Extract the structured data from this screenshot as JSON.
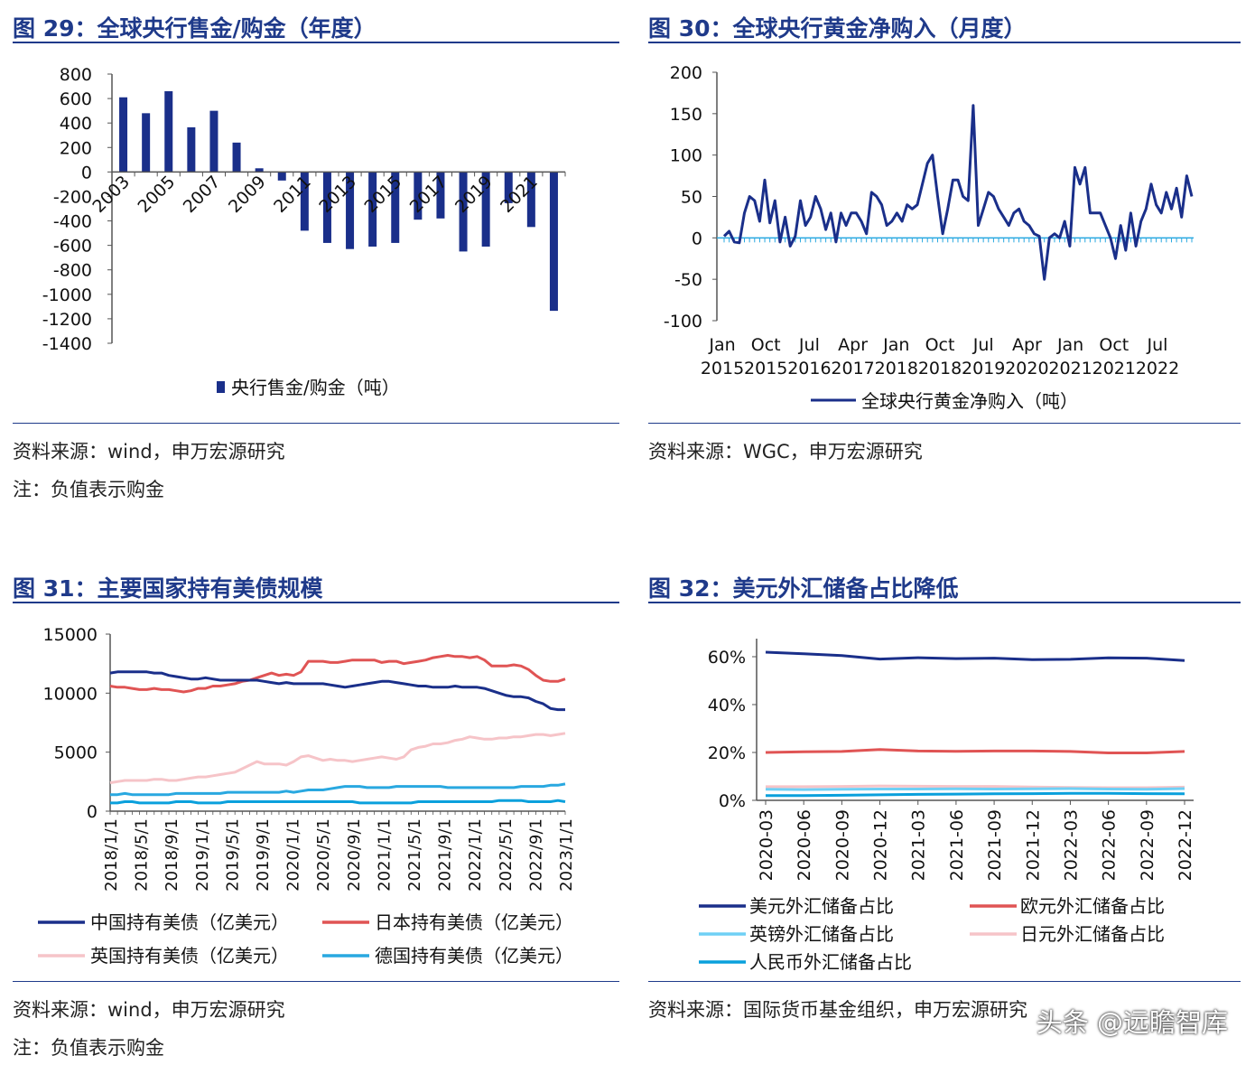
{
  "panels": [
    {
      "title": "图 29：全球央行售金/购金（年度）",
      "source": "资料来源：wind，申万宏源研究",
      "note": "注：负值表示购金"
    },
    {
      "title": "图 30：全球央行黄金净购入（月度）",
      "source": "资料来源：WGC，申万宏源研究",
      "note": ""
    },
    {
      "title": "图 31：主要国家持有美债规模",
      "source": "资料来源：wind，申万宏源研究",
      "note": "注：负值表示购金"
    },
    {
      "title": "图 32：美元外汇储备占比降低",
      "source": "资料来源：国际货币基金组织，申万宏源研究",
      "note": ""
    }
  ],
  "watermark": "头条 @远瞻智库",
  "chart_data": [
    {
      "type": "bar",
      "categories": [
        "2003",
        "2004",
        "2005",
        "2006",
        "2007",
        "2008",
        "2009",
        "2010",
        "2011",
        "2012",
        "2013",
        "2014",
        "2015",
        "2016",
        "2017",
        "2018",
        "2019",
        "2020",
        "2021",
        "2022"
      ],
      "tick_labels": [
        "2003",
        "2005",
        "2007",
        "2009",
        "2011",
        "2013",
        "2015",
        "2017",
        "2019",
        "2021"
      ],
      "series": [
        {
          "name": "央行售金/购金（吨）",
          "color": "#1a2f8a",
          "values": [
            610,
            480,
            660,
            365,
            500,
            240,
            30,
            -70,
            -480,
            -580,
            -630,
            -610,
            -580,
            -390,
            -380,
            -650,
            -610,
            -255,
            -450,
            -1135
          ]
        }
      ],
      "ylim": [
        -1400,
        800
      ],
      "yticks": [
        800,
        600,
        400,
        200,
        0,
        -200,
        -400,
        -600,
        -800,
        -1000,
        -1200,
        -1400
      ],
      "legend": "bottom"
    },
    {
      "type": "line",
      "x_range": [
        "2015-01",
        "2022-11"
      ],
      "tick_top": [
        "Jan",
        "Oct",
        "Jul",
        "Apr",
        "Jan",
        "Oct",
        "Jul",
        "Apr",
        "Jan",
        "Oct",
        "Jul"
      ],
      "tick_bottom": [
        "2015",
        "2015",
        "2016",
        "2017",
        "2018",
        "2018",
        "2019",
        "2020",
        "2021",
        "2021",
        "2022"
      ],
      "series": [
        {
          "name": "全球央行黄金净购入（吨）",
          "color": "#1a2f8a",
          "values": [
            2,
            8,
            -5,
            -6,
            30,
            50,
            45,
            20,
            70,
            18,
            45,
            -5,
            25,
            -10,
            2,
            45,
            15,
            25,
            50,
            35,
            10,
            30,
            -5,
            30,
            15,
            30,
            30,
            20,
            5,
            55,
            50,
            40,
            15,
            20,
            30,
            20,
            40,
            35,
            40,
            65,
            90,
            100,
            50,
            5,
            35,
            70,
            70,
            50,
            45,
            160,
            15,
            35,
            55,
            50,
            35,
            25,
            15,
            30,
            35,
            20,
            15,
            5,
            2,
            -50,
            0,
            5,
            0,
            20,
            -10,
            85,
            65,
            85,
            30,
            30,
            30,
            15,
            0,
            -25,
            15,
            -15,
            30,
            -10,
            20,
            35,
            65,
            40,
            30,
            55,
            35,
            60,
            25,
            75,
            50
          ]
        }
      ],
      "ylim": [
        -100,
        200
      ],
      "yticks": [
        200,
        150,
        100,
        50,
        0,
        -50,
        -100
      ],
      "legend": "bottom"
    },
    {
      "type": "line",
      "x_range": [
        "2018-01",
        "2023-01"
      ],
      "tick_labels": [
        "2018/1/1",
        "2018/5/1",
        "2018/9/1",
        "2019/1/1",
        "2019/5/1",
        "2019/9/1",
        "2020/1/1",
        "2020/5/1",
        "2020/9/1",
        "2021/1/1",
        "2021/5/1",
        "2021/9/1",
        "2022/1/1",
        "2022/5/1",
        "2022/9/1",
        "2023/1/1"
      ],
      "series": [
        {
          "name": "中国持有美债（亿美元）",
          "color": "#1a2f8a",
          "values": [
            11700,
            11800,
            11800,
            11800,
            11800,
            11800,
            11700,
            11700,
            11500,
            11400,
            11300,
            11200,
            11200,
            11300,
            11200,
            11100,
            11100,
            11100,
            11100,
            11100,
            11100,
            11000,
            10900,
            10800,
            10900,
            10800,
            10800,
            10800,
            10800,
            10800,
            10700,
            10600,
            10500,
            10600,
            10700,
            10800,
            10900,
            11000,
            11000,
            10900,
            10800,
            10700,
            10600,
            10600,
            10500,
            10500,
            10500,
            10600,
            10500,
            10500,
            10500,
            10400,
            10200,
            10000,
            9800,
            9700,
            9700,
            9600,
            9300,
            9100,
            8700,
            8600,
            8600
          ]
        },
        {
          "name": "日本持有美债（亿美元）",
          "color": "#e05454",
          "values": [
            10600,
            10500,
            10500,
            10400,
            10300,
            10300,
            10400,
            10300,
            10300,
            10200,
            10100,
            10200,
            10400,
            10400,
            10600,
            10600,
            10700,
            10800,
            11000,
            11100,
            11300,
            11500,
            11700,
            11500,
            11600,
            11500,
            11800,
            12700,
            12700,
            12700,
            12600,
            12600,
            12700,
            12800,
            12800,
            12800,
            12800,
            12600,
            12700,
            12700,
            12500,
            12600,
            12700,
            12800,
            13000,
            13100,
            13200,
            13100,
            13100,
            13000,
            13100,
            12800,
            12300,
            12300,
            12300,
            12400,
            12300,
            12000,
            11500,
            11100,
            11000,
            11000,
            11200
          ]
        },
        {
          "name": "英国持有美债（亿美元）",
          "color": "#f6c4c8",
          "values": [
            2400,
            2500,
            2600,
            2600,
            2600,
            2600,
            2700,
            2700,
            2600,
            2600,
            2700,
            2800,
            2900,
            2900,
            3000,
            3100,
            3200,
            3300,
            3600,
            3900,
            4200,
            4000,
            4000,
            4000,
            3900,
            4200,
            4600,
            4700,
            4500,
            4300,
            4400,
            4300,
            4300,
            4200,
            4300,
            4400,
            4500,
            4600,
            4500,
            4400,
            4600,
            5200,
            5400,
            5500,
            5700,
            5700,
            5800,
            6000,
            6100,
            6300,
            6200,
            6100,
            6100,
            6200,
            6200,
            6300,
            6300,
            6400,
            6500,
            6500,
            6400,
            6500,
            6600
          ]
        },
        {
          "name": "德国持有美债（亿美元）",
          "color": "#29a8e0",
          "values": [
            1400,
            1400,
            1500,
            1400,
            1400,
            1400,
            1400,
            1400,
            1400,
            1500,
            1500,
            1500,
            1500,
            1500,
            1500,
            1500,
            1600,
            1600,
            1600,
            1600,
            1600,
            1600,
            1600,
            1600,
            1700,
            1600,
            1700,
            1800,
            1800,
            1800,
            1900,
            2000,
            2100,
            2100,
            2100,
            2000,
            2000,
            2000,
            2000,
            2100,
            2100,
            2100,
            2100,
            2100,
            2100,
            2100,
            2000,
            2000,
            2000,
            2000,
            2000,
            2000,
            2000,
            2000,
            2000,
            2000,
            2100,
            2100,
            2100,
            2100,
            2200,
            2200,
            2300
          ]
        },
        {
          "name": "",
          "color": "#0aa0dc",
          "values": [
            700,
            700,
            800,
            800,
            700,
            700,
            700,
            700,
            700,
            800,
            800,
            800,
            700,
            700,
            700,
            700,
            800,
            800,
            800,
            800,
            800,
            800,
            800,
            800,
            800,
            800,
            800,
            800,
            800,
            800,
            800,
            800,
            800,
            800,
            700,
            700,
            700,
            700,
            700,
            700,
            700,
            700,
            800,
            800,
            800,
            800,
            800,
            800,
            800,
            800,
            800,
            800,
            800,
            900,
            900,
            900,
            900,
            800,
            800,
            800,
            800,
            900,
            800
          ]
        }
      ],
      "ylim": [
        0,
        15000
      ],
      "yticks": [
        15000,
        10000,
        5000,
        0
      ],
      "legend": "bottom"
    },
    {
      "type": "line",
      "categories": [
        "2020-03",
        "2020-06",
        "2020-09",
        "2020-12",
        "2021-03",
        "2021-06",
        "2021-09",
        "2021-12",
        "2022-03",
        "2022-06",
        "2022-09",
        "2022-12"
      ],
      "series": [
        {
          "name": "美元外汇储备占比",
          "color": "#1a2f8a",
          "values": [
            61.9,
            61.2,
            60.5,
            59.0,
            59.6,
            59.2,
            59.4,
            58.8,
            58.9,
            59.5,
            59.4,
            58.4
          ]
        },
        {
          "name": "欧元外汇储备占比",
          "color": "#e05454",
          "values": [
            20.0,
            20.3,
            20.4,
            21.2,
            20.6,
            20.5,
            20.6,
            20.6,
            20.4,
            19.8,
            19.8,
            20.4
          ]
        },
        {
          "name": "英镑外汇储备占比",
          "color": "#6fd0f5",
          "values": [
            4.6,
            4.5,
            4.6,
            4.7,
            4.7,
            4.8,
            4.7,
            4.8,
            4.9,
            4.7,
            4.6,
            4.9
          ]
        },
        {
          "name": "日元外汇储备占比",
          "color": "#f6c4c8",
          "values": [
            5.7,
            5.7,
            5.8,
            6.0,
            5.9,
            5.8,
            5.8,
            5.6,
            5.4,
            5.3,
            5.3,
            5.5
          ]
        },
        {
          "name": "人民币外汇储备占比",
          "color": "#0aa0dc",
          "values": [
            2.0,
            2.0,
            2.1,
            2.3,
            2.5,
            2.6,
            2.7,
            2.8,
            2.9,
            2.9,
            2.8,
            2.7
          ]
        }
      ],
      "ylim": [
        0,
        60
      ],
      "yticks": [
        "60%",
        "40%",
        "20%",
        "0%"
      ],
      "legend": "bottom"
    }
  ]
}
